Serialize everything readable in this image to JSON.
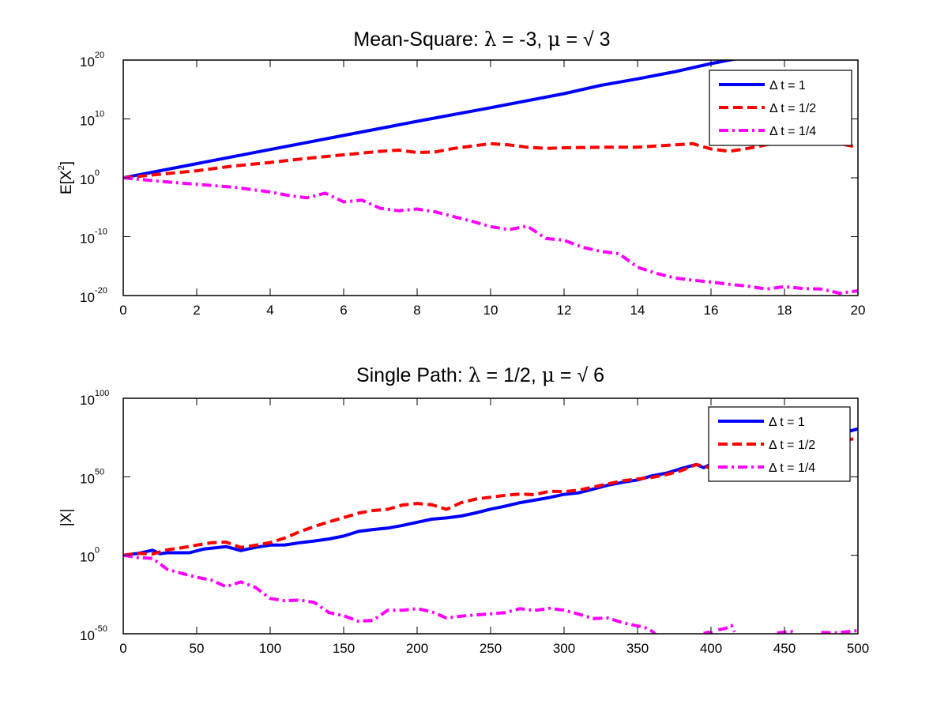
{
  "chart_data": [
    {
      "type": "line",
      "title": "Mean-Square: λ = -3, μ = √ 3",
      "title_parts": {
        "prefix": "Mean-Square: ",
        "lambda_sym": "λ",
        "lambda_val": " = -3, ",
        "mu_sym": "μ",
        "mu_val": " = √ 3"
      },
      "xlabel": "",
      "ylabel": "E[X^2]",
      "ylabel_parts": {
        "base": "E[X",
        "sup": "2",
        "close": "]"
      },
      "yscale": "log",
      "xlim": [
        0,
        20
      ],
      "ylim_log10": [
        -20,
        20
      ],
      "x_ticks": [
        "0",
        "2",
        "4",
        "6",
        "8",
        "10",
        "12",
        "14",
        "16",
        "18",
        "20"
      ],
      "y_ticks": [
        {
          "base": "10",
          "exp": "20"
        },
        {
          "base": "10",
          "exp": "10"
        },
        {
          "base": "10",
          "exp": "0"
        },
        {
          "base": "10",
          "exp": "-10"
        },
        {
          "base": "10",
          "exp": "-20"
        }
      ],
      "legend_position": "top-right",
      "grid": false,
      "series": [
        {
          "name": "Δ t = 1",
          "color": "#0000ff",
          "style": "solid",
          "x": [
            0,
            2,
            4,
            6,
            8,
            10,
            12,
            13,
            14,
            15,
            16,
            17,
            18,
            19,
            20
          ],
          "log10_y": [
            0,
            2.4,
            4.8,
            7.2,
            9.6,
            11.9,
            14.3,
            15.7,
            16.8,
            18.0,
            19.4,
            20.6,
            21.8,
            23.0,
            24.1
          ]
        },
        {
          "name": "Δ t = 1/2",
          "color": "#ff0000",
          "style": "dashed",
          "x": [
            0,
            1,
            2,
            3,
            4,
            5,
            6,
            7,
            7.5,
            8,
            8.5,
            9,
            10,
            10.5,
            11,
            11.5,
            12,
            13,
            14,
            15,
            15.5,
            16,
            16.5,
            17,
            17.5,
            18,
            18.5,
            19,
            19.5,
            20
          ],
          "log10_y": [
            0,
            0.6,
            1.2,
            2.0,
            2.6,
            3.3,
            3.9,
            4.5,
            4.7,
            4.3,
            4.4,
            5.0,
            5.8,
            5.6,
            5.2,
            5.0,
            5.1,
            5.2,
            5.2,
            5.6,
            5.8,
            4.9,
            4.5,
            5.0,
            5.6,
            6.2,
            6.4,
            6.2,
            5.8,
            5.2
          ]
        },
        {
          "name": "Δ t = 1/4",
          "color": "#ff00ff",
          "style": "dashdot",
          "x": [
            0,
            1,
            2,
            3,
            4,
            4.5,
            5,
            5.5,
            6,
            6.5,
            7,
            7.5,
            8,
            8.5,
            9,
            9.5,
            10,
            10.5,
            11,
            11.5,
            12,
            12.5,
            13,
            13.5,
            14,
            14.5,
            15,
            15.5,
            16,
            16.5,
            17,
            17.5,
            18,
            18.5,
            19,
            19.5,
            20
          ],
          "log10_y": [
            0,
            -0.6,
            -1.1,
            -1.6,
            -2.4,
            -3.0,
            -3.4,
            -2.6,
            -4.1,
            -3.8,
            -5.2,
            -5.6,
            -5.3,
            -5.8,
            -6.6,
            -7.4,
            -8.3,
            -8.8,
            -8.2,
            -10.3,
            -10.6,
            -11.8,
            -12.5,
            -12.9,
            -15.2,
            -16.2,
            -17.0,
            -17.4,
            -17.7,
            -18.1,
            -18.4,
            -18.9,
            -18.5,
            -18.8,
            -18.9,
            -19.6,
            -19.2
          ]
        }
      ]
    },
    {
      "type": "line",
      "title": "Single Path: λ = 1/2, μ = √ 6",
      "title_parts": {
        "prefix": "Single Path: ",
        "lambda_sym": "λ",
        "lambda_val": " = 1/2, ",
        "mu_sym": "μ",
        "mu_val": " = √ 6"
      },
      "xlabel": "",
      "ylabel": "|X|",
      "yscale": "log",
      "xlim": [
        0,
        500
      ],
      "ylim_log10": [
        -50,
        100
      ],
      "x_ticks": [
        "0",
        "50",
        "100",
        "150",
        "200",
        "250",
        "300",
        "350",
        "400",
        "450",
        "500"
      ],
      "y_ticks": [
        {
          "base": "10",
          "exp": "100"
        },
        {
          "base": "10",
          "exp": "50"
        },
        {
          "base": "10",
          "exp": "0"
        },
        {
          "base": "10",
          "exp": "-50"
        }
      ],
      "legend_position": "top-right",
      "grid": false,
      "series": [
        {
          "name": "Δ t = 1",
          "color": "#0000ff",
          "style": "solid",
          "x": [
            0,
            10,
            20,
            25,
            30,
            45,
            55,
            70,
            80,
            90,
            100,
            110,
            120,
            130,
            140,
            150,
            160,
            170,
            180,
            190,
            200,
            210,
            220,
            230,
            240,
            250,
            260,
            270,
            280,
            290,
            300,
            310,
            320,
            330,
            340,
            350,
            360,
            370,
            380,
            390,
            395,
            400,
            410,
            420,
            430,
            440,
            450,
            460,
            470,
            480,
            490,
            500
          ],
          "log10_y": [
            0,
            1.2,
            3.2,
            1.0,
            1.6,
            1.6,
            4.0,
            5.5,
            3.0,
            5.0,
            6.5,
            6.6,
            8.0,
            9.1,
            10.4,
            12.2,
            15.2,
            16.4,
            17.3,
            19.0,
            21.0,
            23.0,
            23.8,
            25.0,
            27.0,
            29.4,
            31.3,
            33.5,
            35.1,
            36.8,
            38.8,
            39.8,
            42.2,
            44.7,
            46.5,
            48.0,
            50.6,
            52.4,
            55.3,
            57.8,
            55.8,
            58.0,
            60.3,
            62.8,
            64.8,
            66.2,
            68.8,
            71.0,
            73.5,
            75.2,
            78.0,
            80.5
          ]
        },
        {
          "name": "Δ t = 1/2",
          "color": "#ff0000",
          "style": "dashed",
          "x": [
            0,
            10,
            20,
            30,
            40,
            50,
            60,
            70,
            80,
            90,
            100,
            110,
            120,
            130,
            140,
            150,
            160,
            170,
            180,
            190,
            200,
            210,
            220,
            230,
            240,
            250,
            260,
            270,
            280,
            290,
            300,
            310,
            320,
            330,
            340,
            350,
            360,
            370,
            380,
            390,
            400,
            410,
            420,
            430,
            440,
            450,
            460,
            470,
            480,
            490,
            500
          ],
          "log10_y": [
            0,
            1.2,
            0.8,
            3.5,
            4.8,
            6.5,
            8.0,
            8.4,
            5.0,
            6.4,
            8.1,
            11.0,
            15.0,
            18.3,
            21.3,
            24.0,
            26.8,
            28.5,
            29.3,
            32.0,
            33.0,
            32.2,
            29.3,
            33.5,
            35.8,
            37.0,
            38.2,
            39.0,
            38.6,
            40.8,
            40.5,
            41.5,
            43.5,
            45.5,
            47.5,
            48.6,
            49.6,
            51.5,
            54.0,
            57.8,
            55.6,
            58.8,
            61.0,
            62.8,
            64.0,
            65.8,
            67.5,
            68.0,
            70.5,
            73.3,
            74.5
          ]
        },
        {
          "name": "Δ t = 1/4",
          "color": "#ff00ff",
          "style": "dashdot",
          "x": [
            0,
            10,
            20,
            30,
            40,
            50,
            60,
            70,
            80,
            90,
            100,
            110,
            120,
            130,
            140,
            150,
            160,
            170,
            180,
            190,
            200,
            210,
            220,
            230,
            240,
            250,
            260,
            270,
            280,
            290,
            300,
            310,
            320,
            330,
            340,
            350,
            355,
            360,
            362
          ],
          "log10_y": [
            0,
            -1.5,
            -2.0,
            -9.0,
            -11.6,
            -14.0,
            -15.8,
            -20.0,
            -17.0,
            -20.5,
            -27.5,
            -29.0,
            -28.5,
            -30.0,
            -36.5,
            -38.5,
            -42.0,
            -41.5,
            -35.0,
            -35.0,
            -34.0,
            -36.0,
            -40.0,
            -38.8,
            -38.0,
            -37.3,
            -36.5,
            -34.0,
            -35.2,
            -33.8,
            -35.0,
            -37.5,
            -40.3,
            -40.0,
            -43.0,
            -45.0,
            -46.0,
            -48.5,
            -50.0
          ],
          "tail_fragments": [
            {
              "x": [
                395,
                398,
                401
              ],
              "log10_y": [
                -49.8,
                -49.0,
                -49.6
              ]
            },
            {
              "x": [
                405,
                410,
                414,
                416
              ],
              "log10_y": [
                -47.5,
                -46.6,
                -44.7,
                -48.8
              ]
            },
            {
              "x": [
                445,
                450,
                455,
                458
              ],
              "log10_y": [
                -49.5,
                -49.0,
                -48.6,
                -49.8
              ]
            },
            {
              "x": [
                475,
                485,
                495,
                500
              ],
              "log10_y": [
                -49.2,
                -49.4,
                -48.5,
                -48.0
              ]
            }
          ]
        }
      ]
    }
  ]
}
